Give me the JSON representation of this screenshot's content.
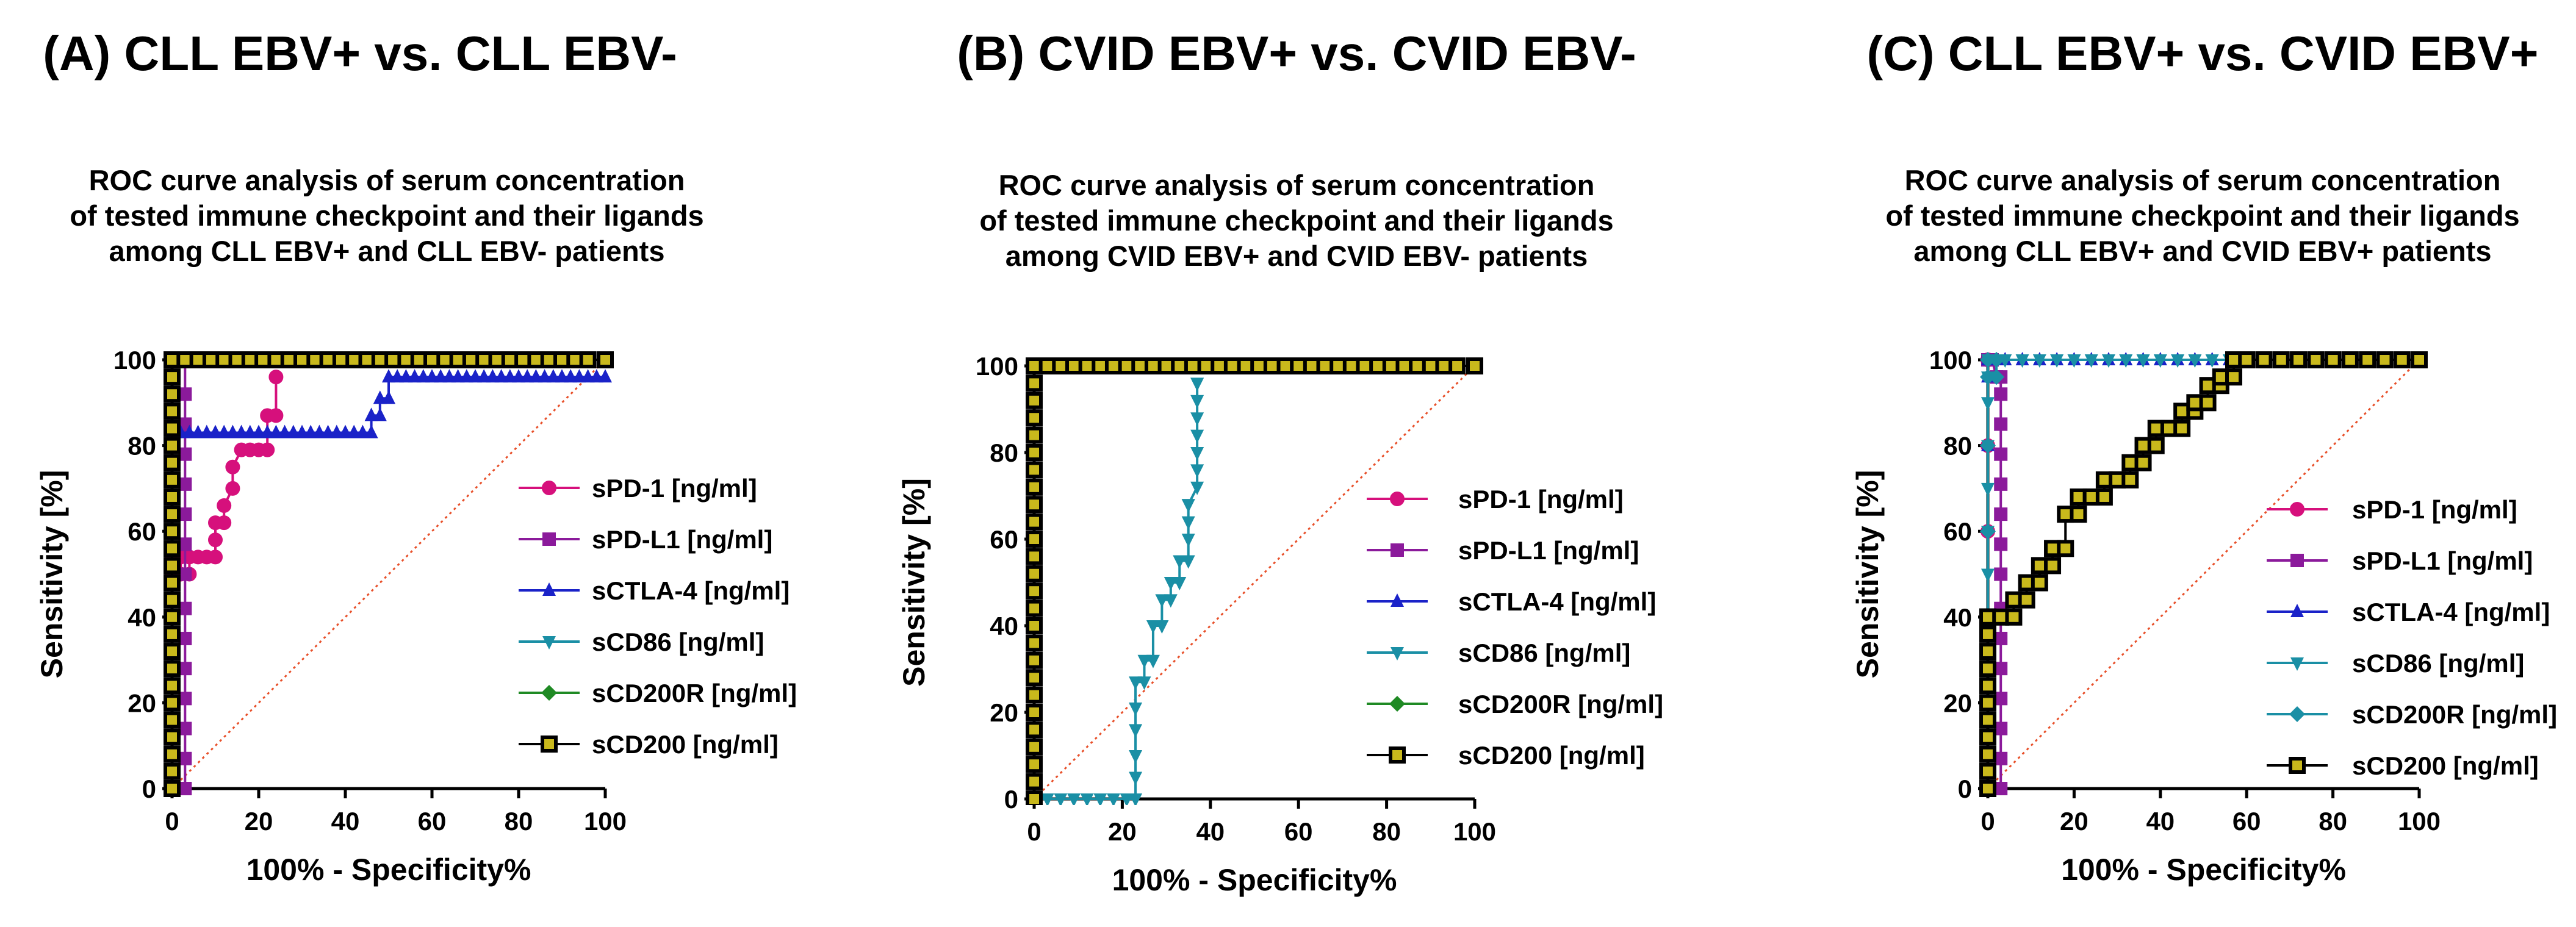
{
  "chart_data": [
    {
      "type": "line",
      "panel_title": "(A) CLL EBV+ vs. CLL EBV-",
      "title_lines": [
        "ROC curve analysis of  serum concentration",
        "of tested immune checkpoint and their ligands",
        "among CLL  EBV+ and CLL EBV- patients"
      ],
      "xlabel": "100% - Specificity%",
      "ylabel": "Sensitivity [%]",
      "xlim": [
        0,
        100
      ],
      "ylim": [
        0,
        100
      ],
      "xticks": [
        "0",
        "20",
        "40",
        "60",
        "80",
        "100"
      ],
      "yticks": [
        "0",
        "20",
        "40",
        "60",
        "80",
        "100"
      ],
      "legend_position": "right",
      "series": [
        {
          "name": "sPD-1 [ng/ml]",
          "color": "#d6107c",
          "marker": "circle",
          "x": [
            0,
            0,
            0,
            0,
            0,
            2,
            2,
            4,
            4,
            6,
            8,
            10,
            10,
            10,
            12,
            12,
            14,
            14,
            16,
            18,
            20,
            22,
            22,
            24,
            24
          ],
          "y": [
            0,
            20,
            40,
            50,
            54,
            54,
            50,
            50,
            54,
            54,
            54,
            54,
            58,
            62,
            62,
            66,
            70,
            75,
            79,
            79,
            79,
            79,
            87,
            87,
            96
          ]
        },
        {
          "name": "sPD-L1 [ng/ml]",
          "color": "#8b1a9b",
          "marker": "square",
          "x": [
            3,
            3,
            3,
            3,
            3,
            3,
            3,
            3,
            3,
            3,
            3,
            3,
            3,
            3,
            3
          ],
          "y": [
            0,
            7,
            14,
            21,
            28,
            35,
            42,
            50,
            57,
            64,
            71,
            78,
            85,
            92,
            100
          ]
        },
        {
          "name": "sCTLA-4 [ng/ml]",
          "color": "#1a22c8",
          "marker": "triangle",
          "x": [
            0,
            0,
            0,
            2,
            4,
            6,
            8,
            10,
            12,
            14,
            16,
            18,
            20,
            22,
            24,
            26,
            28,
            30,
            32,
            34,
            36,
            38,
            40,
            42,
            44,
            46,
            46,
            48,
            48,
            50,
            50,
            52,
            54,
            56,
            58,
            60,
            62,
            64,
            66,
            68,
            70,
            72,
            74,
            76,
            78,
            80,
            82,
            84,
            86,
            88,
            90,
            92,
            94,
            96,
            98,
            100
          ],
          "y": [
            0,
            40,
            83,
            83,
            83,
            83,
            83,
            83,
            83,
            83,
            83,
            83,
            83,
            83,
            83,
            83,
            83,
            83,
            83,
            83,
            83,
            83,
            83,
            83,
            83,
            83,
            87,
            87,
            91,
            91,
            96,
            96,
            96,
            96,
            96,
            96,
            96,
            96,
            96,
            96,
            96,
            96,
            96,
            96,
            96,
            96,
            96,
            96,
            96,
            96,
            96,
            96,
            96,
            96,
            96,
            96
          ]
        },
        {
          "name": "sCD86 [ng/ml]",
          "color": "#1a8fa5",
          "marker": "invtriangle",
          "x": [],
          "y": []
        },
        {
          "name": "sCD200R [ng/ml]",
          "color": "#1f8a24",
          "marker": "diamond",
          "x": [],
          "y": []
        },
        {
          "name": "sCD200 [ng/ml]",
          "color": "#000000",
          "marker": "square-yellow",
          "x": [
            0,
            0,
            0,
            0,
            0,
            0,
            0,
            0,
            0,
            0,
            0,
            0,
            0,
            0,
            0,
            0,
            0,
            0,
            0,
            0,
            0,
            0,
            0,
            0,
            0,
            0,
            3,
            6,
            9,
            12,
            15,
            18,
            21,
            24,
            27,
            30,
            33,
            36,
            39,
            42,
            45,
            48,
            51,
            54,
            57,
            60,
            63,
            66,
            69,
            72,
            75,
            78,
            81,
            84,
            87,
            90,
            93,
            96,
            100
          ],
          "y": [
            0,
            4,
            8,
            12,
            16,
            20,
            24,
            28,
            32,
            36,
            40,
            44,
            48,
            52,
            56,
            60,
            64,
            68,
            72,
            76,
            80,
            84,
            88,
            92,
            96,
            100,
            100,
            100,
            100,
            100,
            100,
            100,
            100,
            100,
            100,
            100,
            100,
            100,
            100,
            100,
            100,
            100,
            100,
            100,
            100,
            100,
            100,
            100,
            100,
            100,
            100,
            100,
            100,
            100,
            100,
            100,
            100,
            100,
            100
          ]
        }
      ]
    },
    {
      "type": "line",
      "panel_title": "(B) CVID EBV+ vs. CVID EBV-",
      "title_lines": [
        "ROC curve analysis of  serum concentration",
        "of tested immune checkpoint and their ligands",
        "among CVID  EBV+ and CVID EBV- patients"
      ],
      "xlabel": "100% - Specificity%",
      "ylabel": "Sensitivity [%]",
      "xlim": [
        0,
        100
      ],
      "ylim": [
        0,
        100
      ],
      "xticks": [
        "0",
        "20",
        "40",
        "60",
        "80",
        "100"
      ],
      "yticks": [
        "0",
        "20",
        "40",
        "60",
        "80",
        "100"
      ],
      "legend_position": "right",
      "series": [
        {
          "name": "sPD-1 [ng/ml]",
          "color": "#d6107c",
          "marker": "circle",
          "x": [],
          "y": []
        },
        {
          "name": "sPD-L1 [ng/ml]",
          "color": "#8b1a9b",
          "marker": "square",
          "x": [],
          "y": []
        },
        {
          "name": "sCTLA-4 [ng/ml]",
          "color": "#1a22c8",
          "marker": "triangle",
          "x": [],
          "y": []
        },
        {
          "name": "sCD86 [ng/ml]",
          "color": "#1a8fa5",
          "marker": "invtriangle",
          "x": [
            0,
            3,
            6,
            9,
            12,
            15,
            18,
            21,
            23,
            23,
            23,
            23,
            23,
            23,
            25,
            25,
            27,
            27,
            29,
            29,
            31,
            31,
            33,
            33,
            35,
            35,
            35,
            35,
            35,
            37,
            37,
            37,
            37,
            37,
            37,
            37,
            37
          ],
          "y": [
            0,
            0,
            0,
            0,
            0,
            0,
            0,
            0,
            0,
            5,
            10,
            16,
            21,
            27,
            27,
            32,
            32,
            40,
            40,
            46,
            46,
            50,
            50,
            55,
            55,
            60,
            64,
            68,
            68,
            72,
            76,
            80,
            84,
            88,
            92,
            96,
            96
          ]
        },
        {
          "name": "sCD200R [ng/ml]",
          "color": "#1f8a24",
          "marker": "diamond",
          "x": [],
          "y": []
        },
        {
          "name": "sCD200 [ng/ml]",
          "color": "#000000",
          "marker": "square-yellow",
          "x": [
            0,
            0,
            0,
            0,
            0,
            0,
            0,
            0,
            0,
            0,
            0,
            0,
            0,
            0,
            0,
            0,
            0,
            0,
            0,
            0,
            0,
            0,
            0,
            0,
            0,
            0,
            3,
            6,
            9,
            12,
            15,
            18,
            21,
            24,
            27,
            30,
            33,
            36,
            39,
            42,
            45,
            48,
            51,
            54,
            57,
            60,
            63,
            66,
            69,
            72,
            75,
            78,
            81,
            84,
            87,
            90,
            93,
            96,
            100
          ],
          "y": [
            0,
            4,
            8,
            12,
            16,
            20,
            24,
            28,
            32,
            36,
            40,
            44,
            48,
            52,
            56,
            60,
            64,
            68,
            72,
            76,
            80,
            84,
            88,
            92,
            96,
            100,
            100,
            100,
            100,
            100,
            100,
            100,
            100,
            100,
            100,
            100,
            100,
            100,
            100,
            100,
            100,
            100,
            100,
            100,
            100,
            100,
            100,
            100,
            100,
            100,
            100,
            100,
            100,
            100,
            100,
            100,
            100,
            100,
            100
          ]
        }
      ]
    },
    {
      "type": "line",
      "panel_title": "(C) CLL EBV+ vs. CVID EBV+",
      "title_lines": [
        "ROC curve analysis of  serum concentration",
        "of tested immune checkpoint and their ligands",
        "among CLL  EBV+ and CVID EBV+ patients"
      ],
      "xlabel": "100% - Specificity%",
      "ylabel": "Sensitivity [%]",
      "xlim": [
        0,
        100
      ],
      "ylim": [
        0,
        100
      ],
      "xticks": [
        "0",
        "20",
        "40",
        "60",
        "80",
        "100"
      ],
      "yticks": [
        "0",
        "20",
        "40",
        "60",
        "80",
        "100"
      ],
      "legend_position": "right",
      "series": [
        {
          "name": "sPD-1 [ng/ml]",
          "color": "#d6107c",
          "marker": "circle",
          "x": [
            0,
            0,
            0,
            0,
            0,
            0,
            0
          ],
          "y": [
            0,
            20,
            40,
            60,
            80,
            100,
            100
          ]
        },
        {
          "name": "sPD-L1 [ng/ml]",
          "color": "#8b1a9b",
          "marker": "square",
          "x": [
            3,
            3,
            3,
            3,
            3,
            3,
            3,
            3,
            3,
            3,
            3,
            3,
            3,
            3,
            3,
            2,
            1,
            0
          ],
          "y": [
            0,
            7,
            14,
            21,
            28,
            35,
            42,
            50,
            57,
            64,
            71,
            78,
            85,
            92,
            96,
            96,
            100,
            100
          ]
        },
        {
          "name": "sCTLA-4 [ng/ml]",
          "color": "#1a22c8",
          "marker": "triangle",
          "x": [
            0,
            0,
            0,
            0,
            0,
            4,
            8,
            12,
            16,
            20,
            24,
            28,
            32,
            36,
            40,
            44,
            48,
            52,
            56,
            60
          ],
          "y": [
            0,
            40,
            80,
            96,
            100,
            100,
            100,
            100,
            100,
            100,
            100,
            100,
            100,
            100,
            100,
            100,
            100,
            100,
            100,
            100
          ]
        },
        {
          "name": "sCD86 [ng/ml]",
          "color": "#1a8fa5",
          "marker": "invtriangle",
          "x": [
            0,
            0,
            0,
            0,
            0,
            0,
            0,
            0,
            4,
            8,
            12,
            16,
            20,
            24,
            28,
            32,
            36,
            40,
            44,
            48,
            52,
            56
          ],
          "y": [
            40,
            50,
            60,
            70,
            80,
            90,
            96,
            100,
            100,
            100,
            100,
            100,
            100,
            100,
            100,
            100,
            100,
            100,
            100,
            100,
            100,
            100
          ]
        },
        {
          "name": "sCD200R [ng/ml]",
          "color": "#1a8fa5",
          "marker": "diamond",
          "x": [
            0,
            0,
            0,
            0,
            0,
            2,
            2
          ],
          "y": [
            40,
            60,
            80,
            96,
            100,
            100,
            96
          ]
        },
        {
          "name": "sCD200 [ng/ml]",
          "color": "#000000",
          "marker": "square-yellow",
          "x": [
            0,
            0,
            0,
            0,
            0,
            0,
            0,
            0,
            0,
            0,
            0,
            0,
            0,
            0,
            0,
            0,
            3,
            6,
            6,
            9,
            9,
            12,
            12,
            15,
            15,
            18,
            18,
            21,
            21,
            24,
            24,
            27,
            27,
            30,
            30,
            33,
            33,
            36,
            36,
            39,
            39,
            42,
            42,
            45,
            45,
            48,
            48,
            51,
            51,
            54,
            54,
            57,
            57,
            60,
            64,
            68,
            72,
            76,
            80,
            84,
            88,
            92,
            96,
            100
          ],
          "y": [
            0,
            4,
            8,
            12,
            16,
            20,
            24,
            28,
            32,
            36,
            40,
            40,
            40,
            40,
            40,
            40,
            40,
            40,
            44,
            44,
            48,
            48,
            52,
            52,
            56,
            56,
            64,
            64,
            68,
            68,
            68,
            68,
            72,
            72,
            72,
            72,
            76,
            76,
            80,
            80,
            84,
            84,
            84,
            84,
            88,
            88,
            90,
            90,
            94,
            94,
            96,
            96,
            100,
            100,
            100,
            100,
            100,
            100,
            100,
            100,
            100,
            100,
            100,
            100
          ]
        }
      ]
    }
  ]
}
